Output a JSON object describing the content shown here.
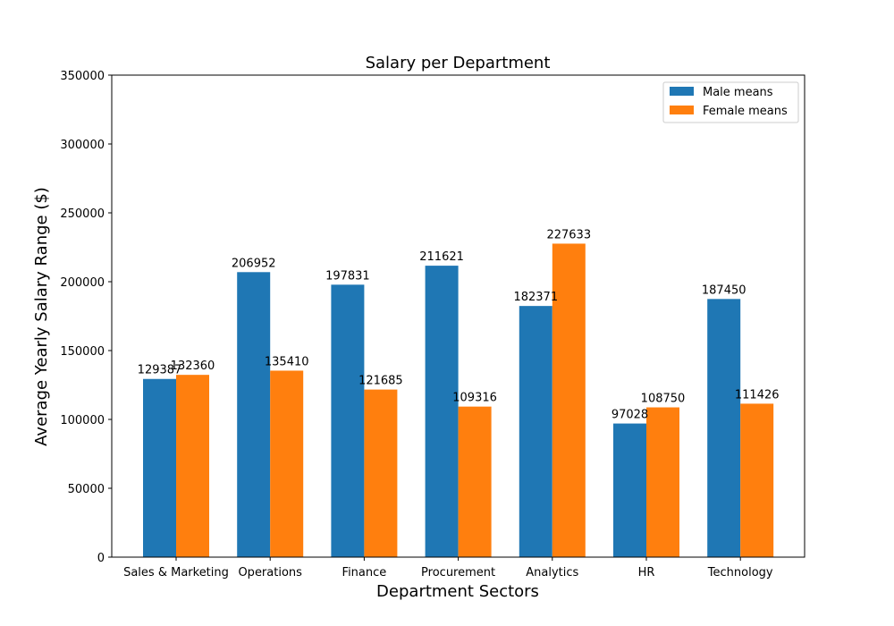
{
  "chart_data": {
    "type": "bar",
    "title": "Salary per Department",
    "xlabel": "Department Sectors",
    "ylabel": "Average Yearly Salary Range ($)",
    "categories": [
      "Sales & Marketing",
      "Operations",
      "Finance",
      "Procurement",
      "Analytics",
      "HR",
      "Technology"
    ],
    "series": [
      {
        "name": "Male means",
        "color": "#1f77b4",
        "values": [
          129387,
          206952,
          197831,
          211621,
          182371,
          97028,
          187450
        ]
      },
      {
        "name": "Female means",
        "color": "#ff7f0e",
        "values": [
          132360,
          135410,
          121685,
          109316,
          227633,
          108750,
          111426
        ]
      }
    ],
    "ylim": [
      0,
      350000
    ],
    "yticks": [
      0,
      50000,
      100000,
      150000,
      200000,
      250000,
      300000,
      350000
    ],
    "legend": "top-right",
    "grid": false
  }
}
